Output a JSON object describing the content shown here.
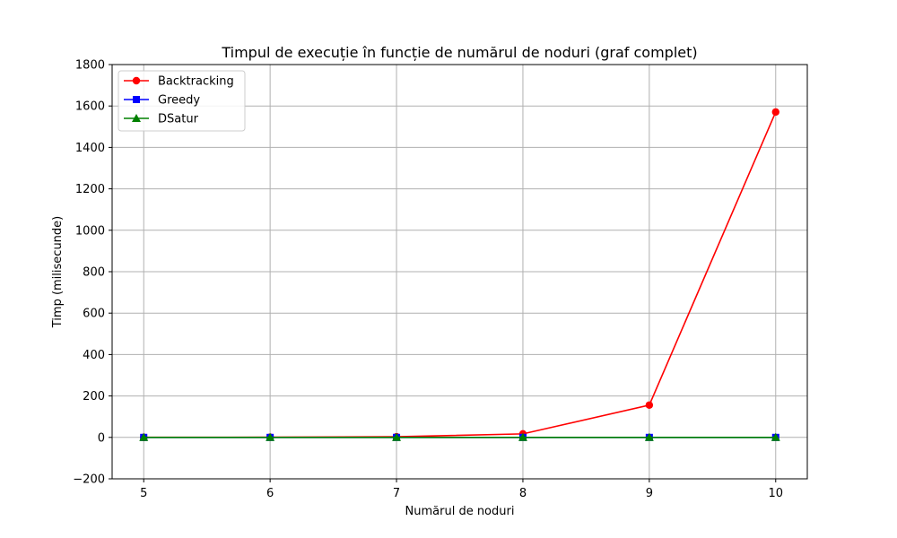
{
  "chart_data": {
    "type": "line",
    "title": "Timpul de execuție în funcție de numărul de noduri (graf complet)",
    "xlabel": "Numărul de noduri",
    "ylabel": "Timp (milisecunde)",
    "x": [
      5,
      6,
      7,
      8,
      9,
      10
    ],
    "xticks": [
      "5",
      "6",
      "7",
      "8",
      "9",
      "10"
    ],
    "yticks": [
      "−200",
      "0",
      "200",
      "400",
      "600",
      "800",
      "1000",
      "1200",
      "1400",
      "1600",
      "1800"
    ],
    "xlim": [
      4.75,
      10.25
    ],
    "ylim": [
      -200,
      1800
    ],
    "grid": true,
    "legend_position": "top-left",
    "series": [
      {
        "name": "Backtracking",
        "color": "#ff0000",
        "marker": "circle",
        "values": [
          0.3,
          1,
          3,
          17,
          156,
          1571
        ]
      },
      {
        "name": "Greedy",
        "color": "#0000ff",
        "marker": "square",
        "values": [
          0,
          0,
          0,
          0,
          0,
          0
        ]
      },
      {
        "name": "DSatur",
        "color": "#008000",
        "marker": "triangle",
        "values": [
          0,
          0,
          0,
          0,
          0,
          0
        ]
      }
    ]
  }
}
